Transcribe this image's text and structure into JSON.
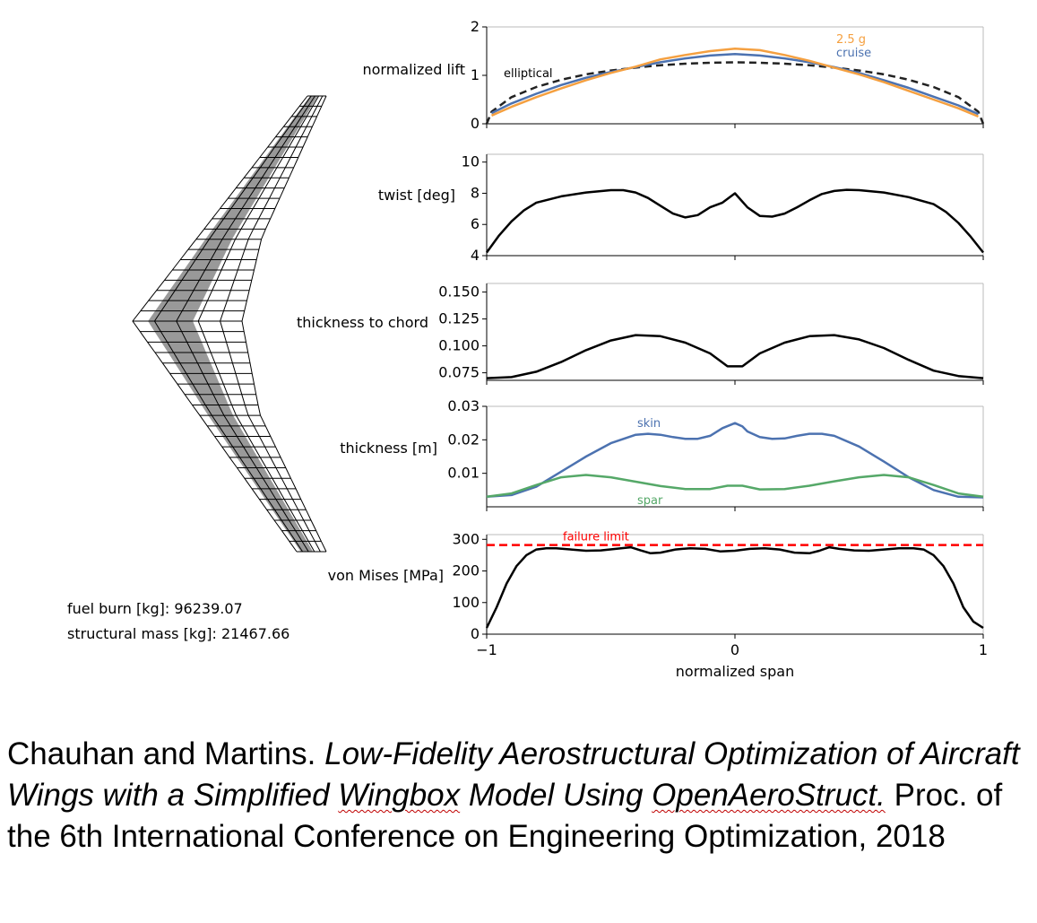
{
  "stats": {
    "fuel_burn": "fuel burn [kg]: 96239.07",
    "structural_mass": "structural mass [kg]: 21467.66"
  },
  "citation": {
    "authors": "Chauhan and Martins.",
    "title_part1": "Low-Fidelity Aerostructural Optimization of Aircraft Wings with a Simplified",
    "title_word_wingbox": "Wingbox",
    "title_part2": "Model Using",
    "title_word_oas": "OpenAeroStruct.",
    "venue": "Proc. of the 6th International Conference on Engineering Optimization, 2018"
  },
  "chart_data": [
    {
      "type": "line",
      "ylabel": "normalized lift",
      "ylim": [
        0,
        2
      ],
      "yticks": [
        0,
        1,
        2
      ],
      "xlim": [
        -1,
        1
      ],
      "series": [
        {
          "name": "elliptical",
          "color": "#222222",
          "dashed": true,
          "x": [
            -1,
            -0.98,
            -0.9,
            -0.8,
            -0.7,
            -0.6,
            -0.5,
            -0.4,
            -0.3,
            -0.2,
            -0.1,
            0,
            0.1,
            0.2,
            0.3,
            0.4,
            0.5,
            0.6,
            0.7,
            0.8,
            0.9,
            0.98,
            1
          ],
          "y": [
            0,
            0.25,
            0.55,
            0.76,
            0.91,
            1.02,
            1.1,
            1.16,
            1.21,
            1.24,
            1.26,
            1.27,
            1.26,
            1.24,
            1.21,
            1.16,
            1.1,
            1.02,
            0.91,
            0.76,
            0.55,
            0.25,
            0
          ]
        },
        {
          "name": "cruise",
          "color": "#4c72b0",
          "dashed": false,
          "x": [
            -0.98,
            -0.9,
            -0.8,
            -0.7,
            -0.6,
            -0.5,
            -0.4,
            -0.3,
            -0.2,
            -0.1,
            0,
            0.1,
            0.2,
            0.3,
            0.4,
            0.5,
            0.6,
            0.7,
            0.8,
            0.9,
            0.98
          ],
          "y": [
            0.22,
            0.42,
            0.62,
            0.8,
            0.95,
            1.07,
            1.17,
            1.27,
            1.35,
            1.41,
            1.44,
            1.41,
            1.35,
            1.27,
            1.17,
            1.05,
            0.9,
            0.74,
            0.56,
            0.38,
            0.2
          ]
        },
        {
          "name": "2.5 g",
          "color": "#f5a040",
          "dashed": false,
          "x": [
            -0.98,
            -0.9,
            -0.8,
            -0.7,
            -0.6,
            -0.5,
            -0.4,
            -0.3,
            -0.2,
            -0.1,
            0,
            0.1,
            0.2,
            0.3,
            0.4,
            0.5,
            0.6,
            0.7,
            0.8,
            0.9,
            0.98
          ],
          "y": [
            0.17,
            0.35,
            0.55,
            0.73,
            0.9,
            1.05,
            1.18,
            1.33,
            1.42,
            1.5,
            1.55,
            1.52,
            1.42,
            1.3,
            1.16,
            1.02,
            0.86,
            0.68,
            0.5,
            0.32,
            0.15
          ]
        }
      ],
      "annotations": [
        "elliptical",
        "2.5 g",
        "cruise"
      ]
    },
    {
      "type": "line",
      "ylabel": "twist [deg]",
      "ylim": [
        4,
        10.5
      ],
      "yticks": [
        4,
        6,
        8,
        10
      ],
      "xlim": [
        -1,
        1
      ],
      "series": [
        {
          "color": "#000000",
          "x": [
            -1,
            -0.95,
            -0.9,
            -0.85,
            -0.8,
            -0.7,
            -0.6,
            -0.5,
            -0.45,
            -0.4,
            -0.35,
            -0.3,
            -0.25,
            -0.2,
            -0.15,
            -0.1,
            -0.05,
            0,
            0.05,
            0.1,
            0.15,
            0.2,
            0.25,
            0.3,
            0.35,
            0.4,
            0.45,
            0.5,
            0.6,
            0.7,
            0.8,
            0.85,
            0.9,
            0.95,
            1
          ],
          "y": [
            4.2,
            5.3,
            6.2,
            6.9,
            7.4,
            7.8,
            8.05,
            8.2,
            8.2,
            8.05,
            7.7,
            7.2,
            6.7,
            6.45,
            6.6,
            7.1,
            7.4,
            8.0,
            7.1,
            6.55,
            6.5,
            6.7,
            7.1,
            7.55,
            7.95,
            8.15,
            8.22,
            8.2,
            8.05,
            7.75,
            7.3,
            6.8,
            6.1,
            5.2,
            4.2
          ]
        }
      ]
    },
    {
      "type": "line",
      "ylabel": "thickness to chord",
      "ylim": [
        0.068,
        0.158
      ],
      "yticks": [
        0.075,
        0.1,
        0.125,
        0.15
      ],
      "xlim": [
        -1,
        1
      ],
      "series": [
        {
          "color": "#000000",
          "x": [
            -1,
            -0.9,
            -0.8,
            -0.7,
            -0.6,
            -0.5,
            -0.4,
            -0.3,
            -0.2,
            -0.1,
            -0.03,
            0.03,
            0.1,
            0.2,
            0.3,
            0.4,
            0.5,
            0.6,
            0.7,
            0.8,
            0.9,
            1
          ],
          "y": [
            0.07,
            0.071,
            0.076,
            0.085,
            0.096,
            0.105,
            0.11,
            0.109,
            0.103,
            0.093,
            0.081,
            0.081,
            0.093,
            0.103,
            0.109,
            0.11,
            0.106,
            0.098,
            0.087,
            0.077,
            0.072,
            0.07
          ]
        }
      ]
    },
    {
      "type": "line",
      "ylabel": "thickness [m]",
      "ylim": [
        0,
        0.03
      ],
      "yticks": [
        0.01,
        0.02,
        0.03
      ],
      "xlim": [
        -1,
        1
      ],
      "series": [
        {
          "name": "skin",
          "color": "#4c72b0",
          "x": [
            -1,
            -0.9,
            -0.8,
            -0.7,
            -0.6,
            -0.5,
            -0.4,
            -0.35,
            -0.3,
            -0.25,
            -0.2,
            -0.15,
            -0.1,
            -0.05,
            0,
            0.03,
            0.05,
            0.1,
            0.15,
            0.2,
            0.25,
            0.3,
            0.35,
            0.4,
            0.5,
            0.6,
            0.7,
            0.8,
            0.9,
            1
          ],
          "y": [
            0.003,
            0.0035,
            0.006,
            0.0105,
            0.015,
            0.019,
            0.0215,
            0.0218,
            0.0215,
            0.0208,
            0.0203,
            0.0203,
            0.0212,
            0.0235,
            0.025,
            0.024,
            0.0225,
            0.0208,
            0.0203,
            0.0204,
            0.0212,
            0.0218,
            0.0218,
            0.0212,
            0.018,
            0.0135,
            0.0088,
            0.005,
            0.003,
            0.0028
          ]
        },
        {
          "name": "spar",
          "color": "#55a868",
          "x": [
            -1,
            -0.9,
            -0.8,
            -0.7,
            -0.6,
            -0.5,
            -0.4,
            -0.3,
            -0.2,
            -0.1,
            -0.03,
            0.03,
            0.1,
            0.2,
            0.3,
            0.4,
            0.5,
            0.6,
            0.7,
            0.8,
            0.9,
            1
          ],
          "y": [
            0.003,
            0.004,
            0.0065,
            0.0088,
            0.0095,
            0.0088,
            0.0075,
            0.0062,
            0.0053,
            0.0053,
            0.0063,
            0.0063,
            0.0052,
            0.0053,
            0.0063,
            0.0076,
            0.0088,
            0.0095,
            0.0088,
            0.0065,
            0.004,
            0.003
          ]
        }
      ]
    },
    {
      "type": "line",
      "ylabel": "von Mises [MPa]",
      "xlabel": "normalized span",
      "ylim": [
        0,
        315
      ],
      "yticks": [
        0,
        100,
        200,
        300
      ],
      "xticks": [
        "−1",
        "0",
        "1"
      ],
      "xlim": [
        -1,
        1
      ],
      "hline": {
        "label": "failure limit",
        "value": 282,
        "color": "#ff0000"
      },
      "series": [
        {
          "color": "#000000",
          "x": [
            -1,
            -0.96,
            -0.92,
            -0.88,
            -0.84,
            -0.8,
            -0.76,
            -0.72,
            -0.66,
            -0.6,
            -0.54,
            -0.48,
            -0.42,
            -0.38,
            -0.34,
            -0.3,
            -0.24,
            -0.18,
            -0.12,
            -0.06,
            0,
            0.06,
            0.12,
            0.18,
            0.24,
            0.3,
            0.34,
            0.38,
            0.42,
            0.48,
            0.54,
            0.6,
            0.66,
            0.72,
            0.76,
            0.8,
            0.84,
            0.88,
            0.92,
            0.96,
            1
          ],
          "y": [
            20,
            85,
            160,
            215,
            250,
            268,
            272,
            272,
            268,
            264,
            265,
            270,
            275,
            265,
            256,
            258,
            268,
            272,
            270,
            262,
            264,
            270,
            272,
            268,
            258,
            256,
            264,
            275,
            270,
            265,
            264,
            268,
            272,
            272,
            268,
            250,
            215,
            160,
            85,
            40,
            20
          ]
        }
      ]
    }
  ]
}
